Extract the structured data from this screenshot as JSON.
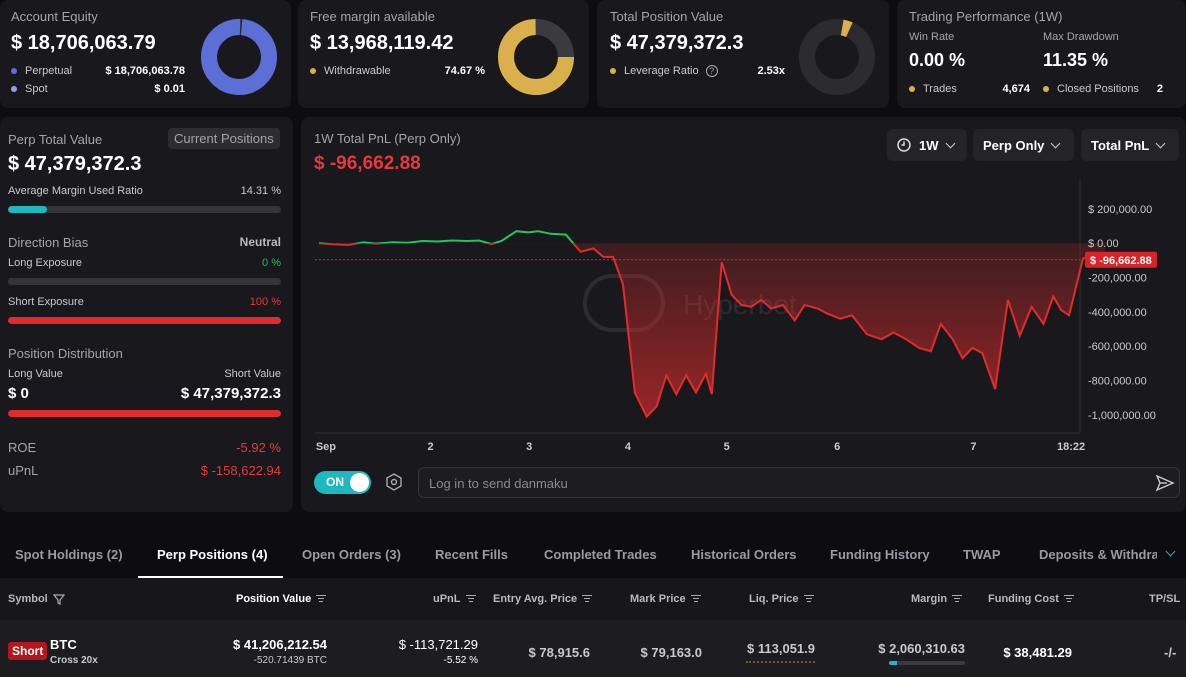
{
  "cards": {
    "account_equity": {
      "title": "Account Equity",
      "value": "$ 18,706,063.79",
      "rows": [
        {
          "label": "Perpetual",
          "value": "$ 18,706,063.78"
        },
        {
          "label": "Spot",
          "value": "$ 0.01"
        }
      ],
      "donut_fill_fraction": 0.99
    },
    "free_margin": {
      "title": "Free margin available",
      "value": "$ 13,968,119.42",
      "rows": [
        {
          "label": "Withdrawable",
          "value": "74.67 %"
        }
      ],
      "donut_fill_fraction": 0.7467
    },
    "position_value": {
      "title": "Total Position Value",
      "value": "$ 47,379,372.3",
      "rows": [
        {
          "label": "Leverage Ratio",
          "value": "2.53x"
        }
      ],
      "donut_fill_fraction": 0.04
    },
    "performance": {
      "title": "Trading Performance (1W)",
      "win_rate_label": "Win Rate",
      "win_rate_value": "0.00 %",
      "max_drawdown_label": "Max Drawdown",
      "max_drawdown_value": "11.35 %",
      "trades_label": "Trades",
      "trades_value": "4,674",
      "closed_label": "Closed Positions",
      "closed_value": "2"
    }
  },
  "left_panel": {
    "perp_total_label": "Perp Total Value",
    "current_positions_button": "Current Positions",
    "perp_total_value": "$ 47,379,372.3",
    "avg_margin_label": "Average Margin Used Ratio",
    "avg_margin_value": "14.31 %",
    "avg_margin_fraction": 0.1431,
    "direction_bias_label": "Direction Bias",
    "direction_bias_value": "Neutral",
    "long_exposure_label": "Long Exposure",
    "long_exposure_value": "0 %",
    "long_exposure_fraction": 0,
    "short_exposure_label": "Short Exposure",
    "short_exposure_value": "100 %",
    "short_exposure_fraction": 1,
    "position_distribution_label": "Position Distribution",
    "long_value_label": "Long Value",
    "short_value_label": "Short Value",
    "long_value": "$ 0",
    "short_value": "$ 47,379,372.3",
    "short_value_fraction": 1,
    "roe_label": "ROE",
    "roe_value": "-5.92 %",
    "upnl_label": "uPnL",
    "upnl_value": "$ -158,622.94"
  },
  "chart_panel": {
    "title": "1W Total PnL (Perp Only)",
    "value": "$ -96,662.88",
    "dropdown_period": "1W",
    "dropdown_scope": "Perp Only",
    "dropdown_metric": "Total PnL",
    "watermark": "Hyperbot",
    "toggle_label": "ON",
    "danmaku_placeholder": "Log in to send danmaku",
    "current_label": "$ -96,662.88"
  },
  "chart_data": {
    "type": "area",
    "title": "1W Total PnL (Perp Only)",
    "xlabel": "",
    "ylabel": "",
    "x_ticks": [
      "Sep",
      "2",
      "3",
      "4",
      "5",
      "6",
      "7",
      "18:22"
    ],
    "y_ticks": [
      "$ 200,000.00",
      "$ 0.00",
      "-200,000.00",
      "-400,000.00",
      "-600,000.00",
      "-800,000.00",
      "-1,000,000.00"
    ],
    "y_tick_values": [
      200000,
      0,
      -200000,
      -400000,
      -600000,
      -800000,
      -1000000
    ],
    "ylim": [
      -1100000,
      380000
    ],
    "xlim": [
      0,
      7.7
    ],
    "current_value": -96662.88,
    "colors": {
      "positive": "#26c45e",
      "negative": "#e02c2c"
    },
    "points": [
      [
        0,
        0
      ],
      [
        0.14,
        -6000
      ],
      [
        0.3,
        -10000
      ],
      [
        0.45,
        5000
      ],
      [
        0.58,
        -2000
      ],
      [
        0.75,
        6000
      ],
      [
        0.9,
        3000
      ],
      [
        1.05,
        13000
      ],
      [
        1.2,
        10000
      ],
      [
        1.35,
        16000
      ],
      [
        1.5,
        13000
      ],
      [
        1.62,
        16000
      ],
      [
        1.75,
        -5000
      ],
      [
        1.85,
        14000
      ],
      [
        2.0,
        70000
      ],
      [
        2.12,
        63000
      ],
      [
        2.22,
        70000
      ],
      [
        2.35,
        55000
      ],
      [
        2.5,
        50000
      ],
      [
        2.65,
        -50000
      ],
      [
        2.78,
        -30000
      ],
      [
        2.88,
        -80000
      ],
      [
        2.98,
        -80000
      ],
      [
        3.08,
        -240000
      ],
      [
        3.2,
        -870000
      ],
      [
        3.32,
        -1010000
      ],
      [
        3.42,
        -950000
      ],
      [
        3.52,
        -770000
      ],
      [
        3.62,
        -880000
      ],
      [
        3.72,
        -770000
      ],
      [
        3.82,
        -870000
      ],
      [
        3.92,
        -760000
      ],
      [
        3.98,
        -880000
      ],
      [
        4.08,
        -110000
      ],
      [
        4.18,
        -300000
      ],
      [
        4.28,
        -360000
      ],
      [
        4.38,
        -370000
      ],
      [
        4.48,
        -330000
      ],
      [
        4.58,
        -380000
      ],
      [
        4.7,
        -360000
      ],
      [
        4.82,
        -450000
      ],
      [
        4.92,
        -360000
      ],
      [
        5.05,
        -380000
      ],
      [
        5.15,
        -410000
      ],
      [
        5.28,
        -440000
      ],
      [
        5.4,
        -420000
      ],
      [
        5.55,
        -530000
      ],
      [
        5.7,
        -560000
      ],
      [
        5.82,
        -520000
      ],
      [
        5.95,
        -560000
      ],
      [
        6.08,
        -610000
      ],
      [
        6.2,
        -630000
      ],
      [
        6.3,
        -470000
      ],
      [
        6.42,
        -560000
      ],
      [
        6.52,
        -670000
      ],
      [
        6.62,
        -610000
      ],
      [
        6.72,
        -640000
      ],
      [
        6.85,
        -850000
      ],
      [
        6.98,
        -330000
      ],
      [
        7.1,
        -540000
      ],
      [
        7.22,
        -370000
      ],
      [
        7.34,
        -470000
      ],
      [
        7.44,
        -310000
      ],
      [
        7.52,
        -390000
      ],
      [
        7.6,
        -420000
      ],
      [
        7.74,
        -90000
      ],
      [
        7.86,
        -55000
      ],
      [
        7.96,
        -96662
      ]
    ]
  },
  "tabs": [
    "Spot Holdings (2)",
    "Perp Positions (4)",
    "Open Orders (3)",
    "Recent Fills",
    "Completed Trades",
    "Historical Orders",
    "Funding History",
    "TWAP",
    "Deposits & Withdraw"
  ],
  "table": {
    "headers": {
      "symbol": "Symbol",
      "position_value": "Position Value",
      "upnl": "uPnL",
      "entry": "Entry Avg. Price",
      "mark": "Mark Price",
      "liq": "Liq. Price",
      "margin": "Margin",
      "funding": "Funding Cost",
      "tpsl": "TP/SL"
    },
    "row": {
      "side": "Short",
      "symbol": "BTC",
      "mode": "Cross 20x",
      "position_value": "$ 41,206,212.54",
      "position_size": "-520.71439 BTC",
      "upnl": "$ -113,721.29",
      "upnl_pct": "-5.52 %",
      "entry": "$ 78,915.6",
      "mark": "$ 79,163.0",
      "liq": "$ 113,051.9",
      "margin": "$ 2,060,310.63",
      "margin_fraction": 0.1,
      "funding": "$ 38,481.29",
      "tpsl": "-/-"
    }
  },
  "colors": {
    "accent_blue": "#5b6fd6",
    "accent_gold": "#d9b04b",
    "red": "#e5393b",
    "green": "#25c05a",
    "teal": "#1fb7c0"
  }
}
